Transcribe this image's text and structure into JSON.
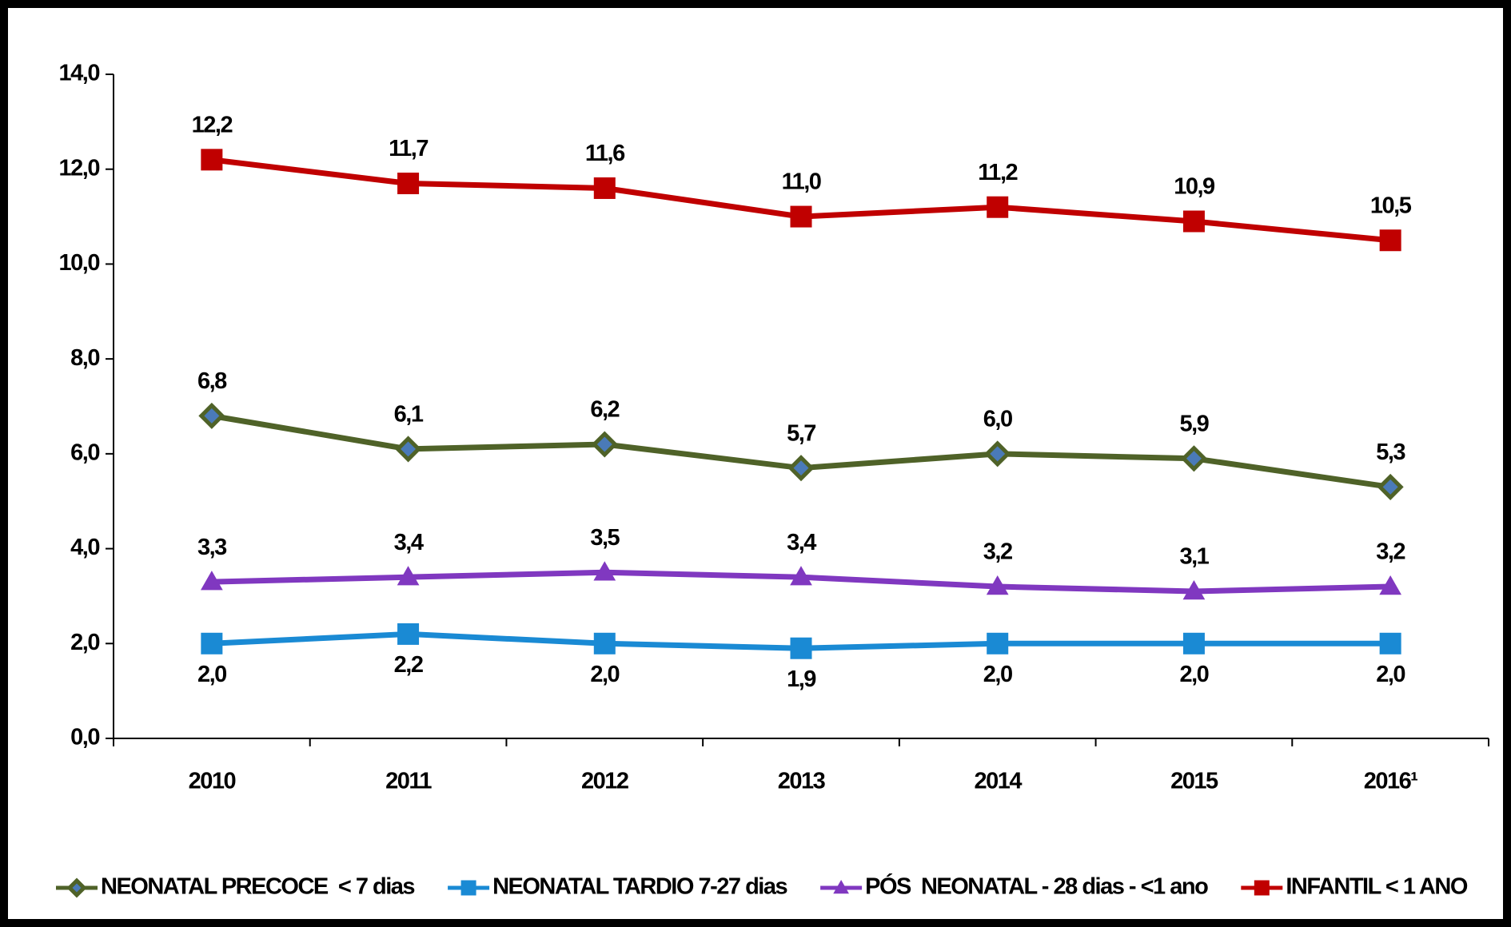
{
  "chart_data": {
    "type": "line",
    "categories": [
      "2010",
      "2011",
      "2012",
      "2013",
      "2014",
      "2015",
      "2016¹"
    ],
    "ylim": [
      0,
      14
    ],
    "yticks": [
      {
        "value": 0,
        "label": "0,0"
      },
      {
        "value": 2,
        "label": "2,0"
      },
      {
        "value": 4,
        "label": "4,0"
      },
      {
        "value": 6,
        "label": "6,0"
      },
      {
        "value": 8,
        "label": "8,0"
      },
      {
        "value": 10,
        "label": "10,0"
      },
      {
        "value": 12,
        "label": "12,0"
      },
      {
        "value": 14,
        "label": "14,0"
      }
    ],
    "grid": false,
    "legend": "bottom",
    "series": [
      {
        "name": "NEONATAL PRECOCE  < 7 dias",
        "color": "#4f6228",
        "marker": "diamond",
        "values": [
          6.8,
          6.1,
          6.2,
          5.7,
          6.0,
          5.9,
          5.3
        ],
        "value_labels": [
          "6,8",
          "6,1",
          "6,2",
          "5,7",
          "6,0",
          "5,9",
          "5,3"
        ]
      },
      {
        "name": "NEONATAL TARDIO 7-27 dias",
        "color": "#1a8ad4",
        "marker": "square",
        "values": [
          2.0,
          2.2,
          2.0,
          1.9,
          2.0,
          2.0,
          2.0
        ],
        "value_labels": [
          "2,0",
          "2,2",
          "2,0",
          "1,9",
          "2,0",
          "2,0",
          "2,0"
        ]
      },
      {
        "name": "PÓS  NEONATAL - 28 dias - <1 ano",
        "color": "#8038c0",
        "marker": "triangle",
        "values": [
          3.3,
          3.4,
          3.5,
          3.4,
          3.2,
          3.1,
          3.2
        ],
        "value_labels": [
          "3,3",
          "3,4",
          "3,5",
          "3,4",
          "3,2",
          "3,1",
          "3,2"
        ]
      },
      {
        "name": "INFANTIL < 1 ANO",
        "color": "#c00000",
        "marker": "square",
        "values": [
          12.2,
          11.7,
          11.6,
          11.0,
          11.2,
          10.9,
          10.5
        ],
        "value_labels": [
          "12,2",
          "11,7",
          "11,6",
          "11,0",
          "11,2",
          "10,9",
          "10,5"
        ]
      }
    ]
  }
}
